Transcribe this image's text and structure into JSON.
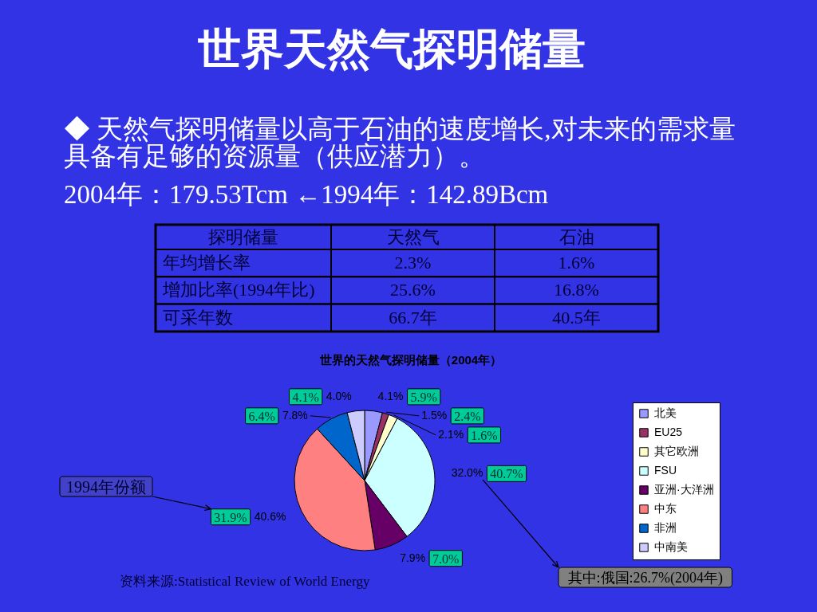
{
  "chart_data": [
    {
      "type": "other",
      "title": "世界天然气探明储量",
      "annotations": [
        "◆ 天然气探明储量以高于石油的速度增长,对未来的需求量",
        "具备有足够的资源量（供应潜力）。",
        "2004年：179.53Tcm ←1994年：142.89Bcm",
        "探明储量",
        "天然气",
        "石油",
        "年均增长率",
        "2.3%",
        "1.6%",
        "增加比率(1994年比)",
        "25.6%",
        "16.8%",
        "可采年数",
        "66.7年",
        "40.5年"
      ]
    },
    {
      "type": "pie",
      "title": "世界的天然气探明储量（2004年）",
      "categories": [
        "北美",
        "EU25",
        "其它欧洲",
        "FSU",
        "亚洲·大洋洲",
        "中东",
        "非洲",
        "中南美"
      ],
      "values": [
        4.1,
        1.5,
        2.1,
        32.0,
        7.9,
        40.6,
        7.8,
        4.0
      ],
      "colors": [
        "#9999ff",
        "#993366",
        "#ffffcc",
        "#ccffff",
        "#660066",
        "#ff8080",
        "#0066cc",
        "#ccccff"
      ],
      "value_labels": [
        "4.1%",
        "1.5%",
        "2.1%",
        "32.0%",
        "7.9%",
        "40.6%",
        "7.8%",
        "4.0%"
      ],
      "legend": "right",
      "annotations": [
        {
          "text": "5.9%",
          "x": "北美"
        },
        {
          "text": "2.4%",
          "x": "EU25"
        },
        {
          "text": "1.6%",
          "x": "其它欧洲"
        },
        {
          "text": "40.7%",
          "x": "FSU"
        },
        {
          "text": "7.0%",
          "x": "亚洲·大洋洲"
        },
        {
          "text": "31.9%",
          "x": "中东"
        },
        {
          "text": "6.4%",
          "x": "非洲"
        },
        {
          "text": "4.1%",
          "x": "中南美"
        },
        "1994年份额",
        {
          "text": "其中:俄国:26.7%(2004年)",
          "x": "FSU"
        },
        "资料来源:Statistical Review of World Energy"
      ]
    }
  ]
}
